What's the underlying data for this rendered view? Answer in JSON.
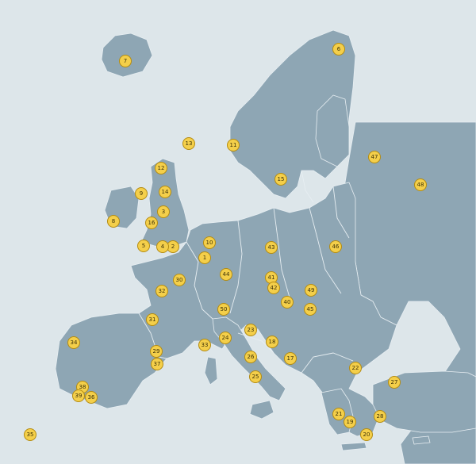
{
  "map": {
    "colors": {
      "background": "#dde6ea",
      "land": "#8ea6b4",
      "border": "#e7eef2",
      "marker_fill": "#f4cf4a",
      "marker_border": "#b48c12"
    },
    "markers": [
      {
        "label": "1"
      },
      {
        "label": "2"
      },
      {
        "label": "3"
      },
      {
        "label": "4"
      },
      {
        "label": "5"
      },
      {
        "label": "6"
      },
      {
        "label": "7"
      },
      {
        "label": "8"
      },
      {
        "label": "9"
      },
      {
        "label": "10"
      },
      {
        "label": "11"
      },
      {
        "label": "12"
      },
      {
        "label": "13"
      },
      {
        "label": "14"
      },
      {
        "label": "15"
      },
      {
        "label": "16"
      },
      {
        "label": "17"
      },
      {
        "label": "18"
      },
      {
        "label": "19"
      },
      {
        "label": "20"
      },
      {
        "label": "21"
      },
      {
        "label": "22"
      },
      {
        "label": "23"
      },
      {
        "label": "24"
      },
      {
        "label": "25"
      },
      {
        "label": "26"
      },
      {
        "label": "27"
      },
      {
        "label": "28"
      },
      {
        "label": "29"
      },
      {
        "label": "30"
      },
      {
        "label": "31"
      },
      {
        "label": "32"
      },
      {
        "label": "33"
      },
      {
        "label": "34"
      },
      {
        "label": "35"
      },
      {
        "label": "36"
      },
      {
        "label": "37"
      },
      {
        "label": "38"
      },
      {
        "label": "39"
      },
      {
        "label": "40"
      },
      {
        "label": "41"
      },
      {
        "label": "42"
      },
      {
        "label": "43"
      },
      {
        "label": "44"
      },
      {
        "label": "45"
      },
      {
        "label": "46"
      },
      {
        "label": "47"
      },
      {
        "label": "48"
      },
      {
        "label": "49"
      },
      {
        "label": "50"
      }
    ]
  }
}
